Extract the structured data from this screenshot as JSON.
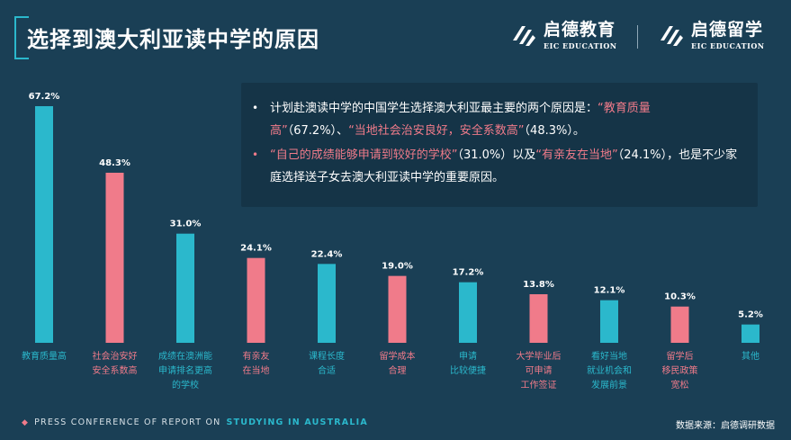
{
  "header": {
    "title": "选择到澳大利亚读中学的原因",
    "brand1": {
      "cn": "启德教育",
      "en": "EIC EDUCATION"
    },
    "brand2": {
      "cn": "启德留学",
      "en": "EIC EDUCATION"
    }
  },
  "info": {
    "bullet1": {
      "t1": "计划赴澳读中学的中国学生选择澳大利亚最主要的两个原因是：",
      "h1": "“教育质量高”",
      "t2": "（67.2%）、",
      "h2": "“当地社会治安良好，安全系数高”",
      "t3": "（48.3%）。"
    },
    "bullet2": {
      "h1": "“自己的成绩能够申请到较好的学校”",
      "t1": "（31.0%）以及",
      "h2": "“有亲友在当地”",
      "t2": "（24.1%），也是不少家庭选择送子女去澳大利亚读中学的重要原因。"
    }
  },
  "chart_data": {
    "type": "bar",
    "categories": [
      "教育质量高",
      "社会治安好\n安全系数高",
      "成绩在澳洲能\n申请排名更高\n的学校",
      "有亲友\n在当地",
      "课程长度\n合适",
      "留学成本\n合理",
      "申请\n比较便捷",
      "大学毕业后\n可申请\n工作签证",
      "看好当地\n就业机会和\n发展前景",
      "留学后\n移民政策\n宽松",
      "其他"
    ],
    "values": [
      67.2,
      48.3,
      31.0,
      24.1,
      22.4,
      19.0,
      17.2,
      13.8,
      12.1,
      10.3,
      5.2
    ],
    "value_labels": [
      "67.2%",
      "48.3%",
      "31.0%",
      "24.1%",
      "22.4%",
      "19.0%",
      "17.2%",
      "13.8%",
      "12.1%",
      "10.3%",
      "5.2%"
    ],
    "colors": [
      "#2bb8cc",
      "#f07b8a",
      "#2bb8cc",
      "#f07b8a",
      "#2bb8cc",
      "#f07b8a",
      "#2bb8cc",
      "#f07b8a",
      "#2bb8cc",
      "#f07b8a",
      "#2bb8cc"
    ],
    "label_colors": [
      "#2bb8cc",
      "#f07b8a",
      "#2bb8cc",
      "#f07b8a",
      "#2bb8cc",
      "#f07b8a",
      "#2bb8cc",
      "#f07b8a",
      "#2bb8cc",
      "#f07b8a",
      "#2bb8cc"
    ],
    "ylim": [
      0,
      67.2
    ],
    "title": "",
    "xlabel": "",
    "ylabel": ""
  },
  "footer": {
    "press": "PRESS CONFERENCE OF REPORT ON",
    "accent": "STUDYING IN AUSTRALIA",
    "source": "数据来源：启德调研数据"
  }
}
